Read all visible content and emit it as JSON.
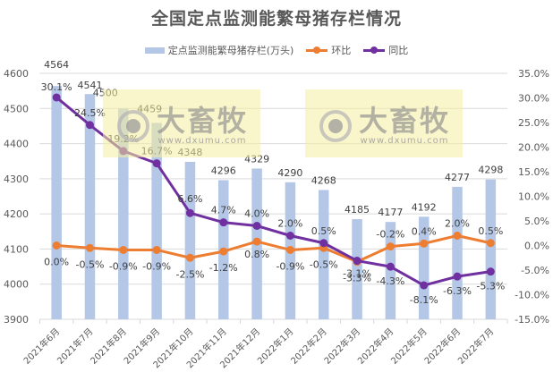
{
  "chart_data": {
    "type": "bar+line",
    "title": "全国定点监测能繁母猪存栏情况",
    "categories": [
      "2021年6月",
      "2021年7月",
      "2021年8月",
      "2021年9月",
      "2021年10月",
      "2021年11月",
      "2021年12月",
      "2022年1月",
      "2022年2月",
      "2022年3月",
      "2022年4月",
      "2022年5月",
      "2022年6月",
      "2022年7月"
    ],
    "series": [
      {
        "name": "定点监测能繁母猪存栏(万头)",
        "type": "bar",
        "axis": "left",
        "color": "#b4c7e7",
        "values": [
          4564,
          4541,
          4500,
          4459,
          4348,
          4296,
          4329,
          4290,
          4268,
          4185,
          4177,
          4192,
          4277,
          4298
        ]
      },
      {
        "name": "环比",
        "type": "line",
        "axis": "right",
        "color": "#ed7d31",
        "unit": "%",
        "values": [
          0.0,
          -0.5,
          -0.9,
          -0.9,
          -2.5,
          -1.2,
          0.8,
          -0.9,
          -0.5,
          -3.3,
          -0.2,
          0.4,
          2.0,
          0.5
        ]
      },
      {
        "name": "同比",
        "type": "line",
        "axis": "right",
        "color": "#7030a0",
        "unit": "%",
        "values": [
          30.1,
          24.5,
          19.2,
          16.7,
          6.6,
          4.7,
          4.0,
          2.0,
          0.5,
          -3.1,
          -4.3,
          -8.1,
          -6.3,
          -5.3
        ]
      }
    ],
    "left_axis": {
      "ylim": [
        3900,
        4600
      ],
      "ticks": [
        "3900",
        "4000",
        "4100",
        "4200",
        "4300",
        "4400",
        "4500",
        "4600"
      ]
    },
    "right_axis": {
      "ylim": [
        -15,
        35
      ],
      "ticks": [
        "-15.0%",
        "-10.0%",
        "-5.0%",
        "0.0%",
        "5.0%",
        "10.0%",
        "15.0%",
        "20.0%",
        "25.0%",
        "30.0%",
        "35.0%"
      ]
    },
    "xlabel": "",
    "ylabel": "",
    "grid": true,
    "legend_position": "top"
  },
  "legend": {
    "bar_label": "定点监测能繁母猪存栏(万头)",
    "mom_label": "环比",
    "yoy_label": "同比"
  },
  "watermark": {
    "brand": "大畜牧",
    "url": "www.dxumu.com"
  }
}
